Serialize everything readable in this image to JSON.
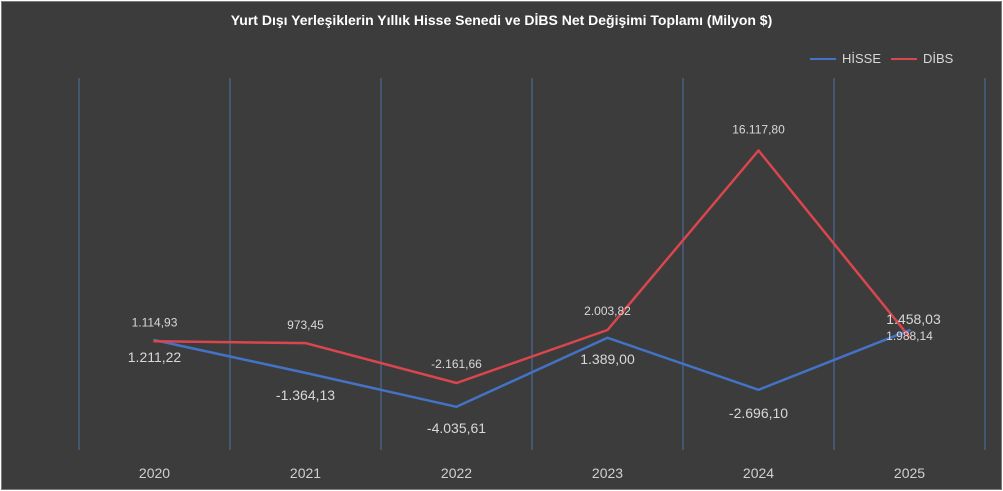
{
  "chart_data": {
    "type": "line",
    "title": "Yurt Dışı Yerleşiklerin Yıllık Hisse Senedi ve DİBS Net Değişimi Toplamı (Milyon $)",
    "categories": [
      "2020",
      "2021",
      "2022",
      "2023",
      "2024",
      "2025"
    ],
    "series": [
      {
        "name": "HİSSE",
        "color": "#4472c4",
        "values": [
          1211.22,
          -1364.13,
          -4035.61,
          1389.0,
          -2696.1,
          1988.14
        ],
        "labels": [
          "1.211,22",
          "-1.364,13",
          "-4.035,61",
          "1.389,00",
          "-2.696,10",
          "1.988,14"
        ]
      },
      {
        "name": "DİBS",
        "color": "#d9464e",
        "values": [
          1114.93,
          973.45,
          -2161.66,
          2003.82,
          16117.8,
          1458.03
        ],
        "labels": [
          "1.114,93",
          "973,45",
          "-2.161,66",
          "2.003,82",
          "16.117,80",
          "1.458,03"
        ]
      }
    ],
    "xlabel": "",
    "ylabel": "",
    "ylim": [
      -10000,
      20000
    ],
    "grid": "vertical",
    "legend_position": "top-right"
  }
}
